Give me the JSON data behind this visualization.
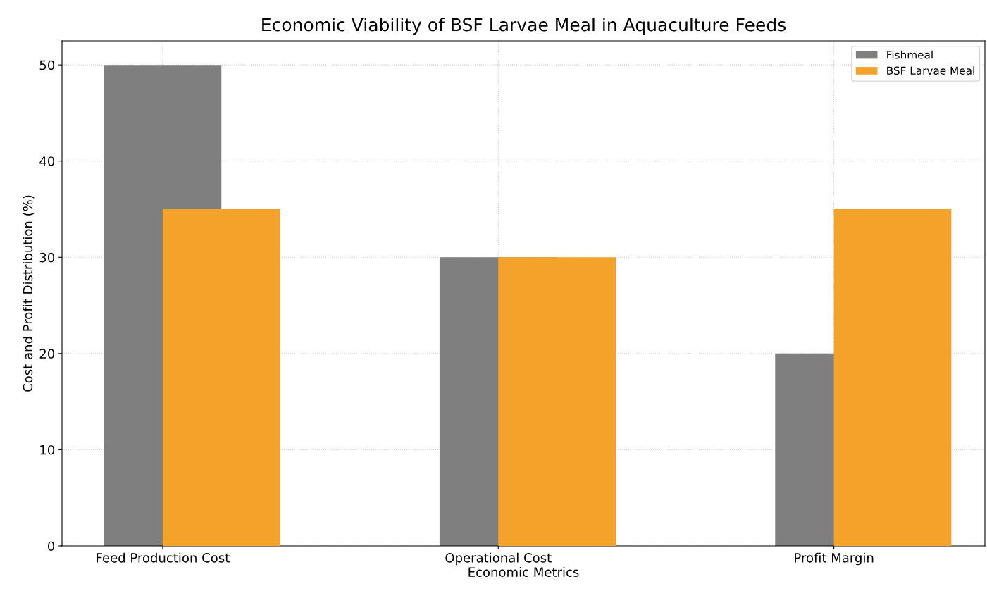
{
  "chart_data": {
    "type": "bar",
    "title": "Economic Viability of BSF Larvae Meal in Aquaculture Feeds",
    "xlabel": "Economic Metrics",
    "ylabel": "Cost and Profit Distribution (%)",
    "categories": [
      "Feed Production Cost",
      "Operational Cost",
      "Profit Margin"
    ],
    "series": [
      {
        "name": "Fishmeal",
        "color": "#7f7f7f",
        "values": [
          50,
          30,
          20
        ]
      },
      {
        "name": "BSF Larvae Meal",
        "color": "#f5a22a",
        "values": [
          35,
          30,
          35
        ]
      }
    ],
    "ylim": [
      0,
      52.5
    ],
    "yticks": [
      0,
      10,
      20,
      30,
      40,
      50
    ],
    "grid": true,
    "legend": "top right"
  }
}
